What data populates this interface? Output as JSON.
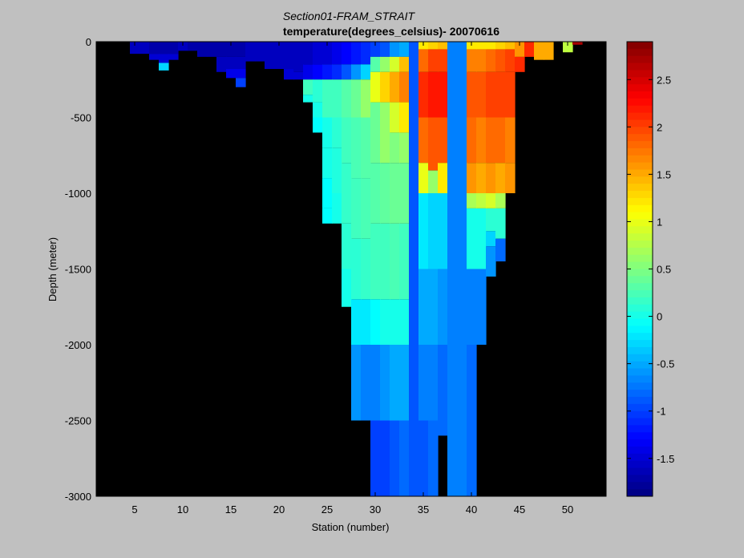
{
  "chart_data": {
    "type": "heatmap",
    "title": "Section01-FRAM_STRAIT",
    "subtitle": "temperature(degrees_celsius)- 20070616",
    "xlabel": "Station (number)",
    "ylabel": "Depth (meter)",
    "xlim": [
      1,
      54
    ],
    "ylim": [
      -3000,
      0
    ],
    "xticks": [
      5,
      10,
      15,
      20,
      25,
      30,
      35,
      40,
      45,
      50
    ],
    "yticks": [
      0,
      -500,
      -1000,
      -1500,
      -2000,
      -2500,
      -3000
    ],
    "colorbar": {
      "range": [
        -1.9,
        2.9
      ],
      "ticks": [
        -1.5,
        -1,
        -0.5,
        0,
        0.5,
        1,
        1.5,
        2,
        2.5
      ],
      "colormap": "jet"
    },
    "background_color": "#000000",
    "columns": [
      {
        "station": 5,
        "bottom": -80,
        "profile": [
          [
            0,
            -1.6
          ]
        ]
      },
      {
        "station": 6,
        "bottom": -80,
        "profile": [
          [
            0,
            -1.6
          ]
        ]
      },
      {
        "station": 7,
        "bottom": -120,
        "profile": [
          [
            0,
            -1.7
          ],
          [
            -80,
            -1.5
          ]
        ]
      },
      {
        "station": 8,
        "bottom": -190,
        "profile": [
          [
            0,
            -1.7
          ],
          [
            -80,
            -1.5
          ],
          [
            -140,
            -0.3
          ]
        ]
      },
      {
        "station": 9,
        "bottom": -120,
        "profile": [
          [
            0,
            -1.7
          ],
          [
            -80,
            -1.5
          ]
        ]
      },
      {
        "station": 10,
        "bottom": -60,
        "profile": [
          [
            0,
            -1.6
          ]
        ]
      },
      {
        "station": 11,
        "bottom": -60,
        "profile": [
          [
            0,
            -1.7
          ]
        ]
      },
      {
        "station": 12,
        "bottom": -100,
        "profile": [
          [
            0,
            -1.7
          ]
        ]
      },
      {
        "station": 13,
        "bottom": -100,
        "profile": [
          [
            0,
            -1.7
          ]
        ]
      },
      {
        "station": 14,
        "bottom": -200,
        "profile": [
          [
            0,
            -1.7
          ],
          [
            -100,
            -1.6
          ]
        ]
      },
      {
        "station": 15,
        "bottom": -240,
        "profile": [
          [
            0,
            -1.7
          ],
          [
            -100,
            -1.6
          ],
          [
            -180,
            -1.4
          ]
        ]
      },
      {
        "station": 16,
        "bottom": -300,
        "profile": [
          [
            0,
            -1.7
          ],
          [
            -100,
            -1.6
          ],
          [
            -180,
            -1.4
          ],
          [
            -240,
            -1.0
          ]
        ]
      },
      {
        "station": 17,
        "bottom": -130,
        "profile": [
          [
            0,
            -1.6
          ]
        ]
      },
      {
        "station": 18,
        "bottom": -130,
        "profile": [
          [
            0,
            -1.6
          ]
        ]
      },
      {
        "station": 19,
        "bottom": -180,
        "profile": [
          [
            0,
            -1.6
          ]
        ]
      },
      {
        "station": 20,
        "bottom": -180,
        "profile": [
          [
            0,
            -1.6
          ]
        ]
      },
      {
        "station": 21,
        "bottom": -250,
        "profile": [
          [
            0,
            -1.6
          ],
          [
            -180,
            -1.5
          ]
        ]
      },
      {
        "station": 22,
        "bottom": -250,
        "profile": [
          [
            0,
            -1.6
          ],
          [
            -200,
            -1.5
          ]
        ]
      },
      {
        "station": 23,
        "bottom": -400,
        "profile": [
          [
            0,
            -1.6
          ],
          [
            -150,
            -1.4
          ],
          [
            -250,
            0.2
          ],
          [
            -350,
            0.0
          ]
        ]
      },
      {
        "station": 24,
        "bottom": -600,
        "profile": [
          [
            0,
            -1.5
          ],
          [
            -150,
            -1.3
          ],
          [
            -250,
            0.1
          ],
          [
            -400,
            0.0
          ],
          [
            -500,
            -0.1
          ]
        ]
      },
      {
        "station": 25,
        "bottom": -1200,
        "profile": [
          [
            0,
            -1.5
          ],
          [
            -150,
            -1.2
          ],
          [
            -250,
            0.2
          ],
          [
            -500,
            0.0
          ],
          [
            -700,
            0.0
          ],
          [
            -900,
            -0.1
          ],
          [
            -1100,
            -0.1
          ]
        ]
      },
      {
        "station": 26,
        "bottom": -1200,
        "profile": [
          [
            0,
            -1.4
          ],
          [
            -150,
            -1.1
          ],
          [
            -250,
            0.2
          ],
          [
            -500,
            0.1
          ],
          [
            -700,
            0.05
          ],
          [
            -1000,
            0.0
          ]
        ]
      },
      {
        "station": 27,
        "bottom": -1750,
        "profile": [
          [
            0,
            -1.3
          ],
          [
            -150,
            -0.9
          ],
          [
            -250,
            0.3
          ],
          [
            -500,
            0.2
          ],
          [
            -800,
            0.15
          ],
          [
            -1200,
            0.1
          ],
          [
            -1500,
            0.0
          ]
        ]
      },
      {
        "station": 28,
        "bottom": -2500,
        "profile": [
          [
            0,
            -1.2
          ],
          [
            -150,
            -0.6
          ],
          [
            -250,
            0.4
          ],
          [
            -500,
            0.25
          ],
          [
            -900,
            0.2
          ],
          [
            -1300,
            0.1
          ],
          [
            -1700,
            -0.2
          ],
          [
            -2000,
            -0.6
          ]
        ]
      },
      {
        "station": 29,
        "bottom": -2500,
        "profile": [
          [
            0,
            -1.1
          ],
          [
            -150,
            -0.3
          ],
          [
            -250,
            0.6
          ],
          [
            -500,
            0.3
          ],
          [
            -900,
            0.25
          ],
          [
            -1300,
            0.15
          ],
          [
            -1700,
            -0.2
          ],
          [
            -2000,
            -0.7
          ]
        ]
      },
      {
        "station": 30,
        "bottom": -3000,
        "profile": [
          [
            0,
            -1.0
          ],
          [
            -100,
            0.3
          ],
          [
            -200,
            1.0
          ],
          [
            -400,
            0.4
          ],
          [
            -800,
            0.3
          ],
          [
            -1200,
            0.2
          ],
          [
            -1700,
            -0.1
          ],
          [
            -2000,
            -0.7
          ],
          [
            -2500,
            -1.0
          ]
        ]
      },
      {
        "station": 31,
        "bottom": -3000,
        "profile": [
          [
            0,
            -0.9
          ],
          [
            -100,
            0.6
          ],
          [
            -200,
            1.3
          ],
          [
            -400,
            0.6
          ],
          [
            -800,
            0.35
          ],
          [
            -1200,
            0.2
          ],
          [
            -1700,
            0.0
          ],
          [
            -2000,
            -0.6
          ],
          [
            -2500,
            -1.0
          ]
        ]
      },
      {
        "station": 32,
        "bottom": -3000,
        "profile": [
          [
            0,
            -0.6
          ],
          [
            -100,
            0.9
          ],
          [
            -200,
            1.5
          ],
          [
            -400,
            0.9
          ],
          [
            -600,
            0.5
          ],
          [
            -800,
            0.4
          ],
          [
            -1200,
            0.25
          ],
          [
            -1700,
            0.0
          ],
          [
            -2000,
            -0.5
          ],
          [
            -2500,
            -0.9
          ]
        ]
      },
      {
        "station": 33,
        "bottom": -3000,
        "profile": [
          [
            0,
            -0.5
          ],
          [
            -100,
            1.4
          ],
          [
            -200,
            1.7
          ],
          [
            -400,
            1.2
          ],
          [
            -600,
            0.6
          ],
          [
            -800,
            0.4
          ],
          [
            -1200,
            0.2
          ],
          [
            -1700,
            0.0
          ],
          [
            -2000,
            -0.5
          ],
          [
            -2500,
            -0.8
          ]
        ]
      },
      {
        "station": 34,
        "bottom": -3000,
        "profile": [
          [
            0,
            -0.9
          ]
        ]
      },
      {
        "station": 35,
        "bottom": -3000,
        "profile": [
          [
            0,
            1.2
          ],
          [
            -50,
            1.8
          ],
          [
            -200,
            2.1
          ],
          [
            -500,
            1.8
          ],
          [
            -800,
            1.0
          ],
          [
            -1000,
            -0.2
          ],
          [
            -1500,
            -0.5
          ],
          [
            -2000,
            -0.7
          ],
          [
            -2500,
            -0.9
          ]
        ]
      },
      {
        "station": 36,
        "bottom": -3000,
        "profile": [
          [
            0,
            1.3
          ],
          [
            -50,
            2.0
          ],
          [
            -200,
            2.2
          ],
          [
            -500,
            1.9
          ],
          [
            -850,
            0.6
          ],
          [
            -1000,
            -0.3
          ],
          [
            -1500,
            -0.5
          ],
          [
            -2000,
            -0.7
          ],
          [
            -2500,
            -0.8
          ]
        ]
      },
      {
        "station": 37,
        "bottom": -2600,
        "profile": [
          [
            0,
            1.4
          ],
          [
            -50,
            2.0
          ],
          [
            -200,
            2.2
          ],
          [
            -500,
            1.9
          ],
          [
            -800,
            1.2
          ],
          [
            -1000,
            -0.3
          ],
          [
            -1500,
            -0.6
          ],
          [
            -2000,
            -0.8
          ]
        ]
      },
      {
        "station": 38,
        "bottom": -3000,
        "profile": [
          [
            0,
            -0.7
          ]
        ]
      },
      {
        "station": 39,
        "bottom": -3000,
        "profile": [
          [
            0,
            -0.7
          ]
        ]
      },
      {
        "station": 40,
        "bottom": -3000,
        "profile": [
          [
            0,
            1.2
          ],
          [
            -50,
            1.7
          ],
          [
            -200,
            1.9
          ],
          [
            -500,
            1.8
          ],
          [
            -800,
            1.6
          ],
          [
            -1000,
            0.7
          ],
          [
            -1100,
            0.0
          ],
          [
            -1500,
            -0.7
          ],
          [
            -2000,
            -0.8
          ]
        ]
      },
      {
        "station": 41,
        "bottom": -2000,
        "profile": [
          [
            0,
            1.2
          ],
          [
            -50,
            1.7
          ],
          [
            -200,
            1.9
          ],
          [
            -500,
            1.7
          ],
          [
            -800,
            1.5
          ],
          [
            -1000,
            0.8
          ],
          [
            -1100,
            0.0
          ],
          [
            -1500,
            -0.7
          ]
        ]
      },
      {
        "station": 42,
        "bottom": -1550,
        "profile": [
          [
            0,
            1.2
          ],
          [
            -50,
            1.8
          ],
          [
            -200,
            2.0
          ],
          [
            -500,
            1.8
          ],
          [
            -800,
            1.6
          ],
          [
            -1000,
            0.9
          ],
          [
            -1100,
            0.1
          ],
          [
            -1250,
            -0.3
          ],
          [
            -1350,
            -0.6
          ]
        ]
      },
      {
        "station": 43,
        "bottom": -1450,
        "profile": [
          [
            0,
            1.3
          ],
          [
            -50,
            1.9
          ],
          [
            -200,
            2.0
          ],
          [
            -500,
            1.8
          ],
          [
            -800,
            1.5
          ],
          [
            -1000,
            0.7
          ],
          [
            -1100,
            0.1
          ],
          [
            -1300,
            -0.8
          ]
        ]
      },
      {
        "station": 44,
        "bottom": -1000,
        "profile": [
          [
            0,
            1.4
          ],
          [
            -50,
            2.0
          ],
          [
            -200,
            2.0
          ],
          [
            -500,
            1.7
          ],
          [
            -800,
            1.6
          ]
        ]
      },
      {
        "station": 45,
        "bottom": -200,
        "profile": [
          [
            0,
            1.6
          ],
          [
            -100,
            2.1
          ]
        ]
      },
      {
        "station": 46,
        "bottom": -100,
        "profile": [
          [
            0,
            2.1
          ]
        ]
      },
      {
        "station": 47,
        "bottom": -120,
        "profile": [
          [
            0,
            1.5
          ]
        ]
      },
      {
        "station": 48,
        "bottom": -120,
        "profile": [
          [
            0,
            1.5
          ]
        ]
      },
      {
        "station": 50,
        "bottom": -70,
        "profile": [
          [
            0,
            0.8
          ]
        ]
      },
      {
        "station": 51,
        "bottom": -20,
        "profile": [
          [
            0,
            2.7
          ]
        ]
      }
    ]
  }
}
